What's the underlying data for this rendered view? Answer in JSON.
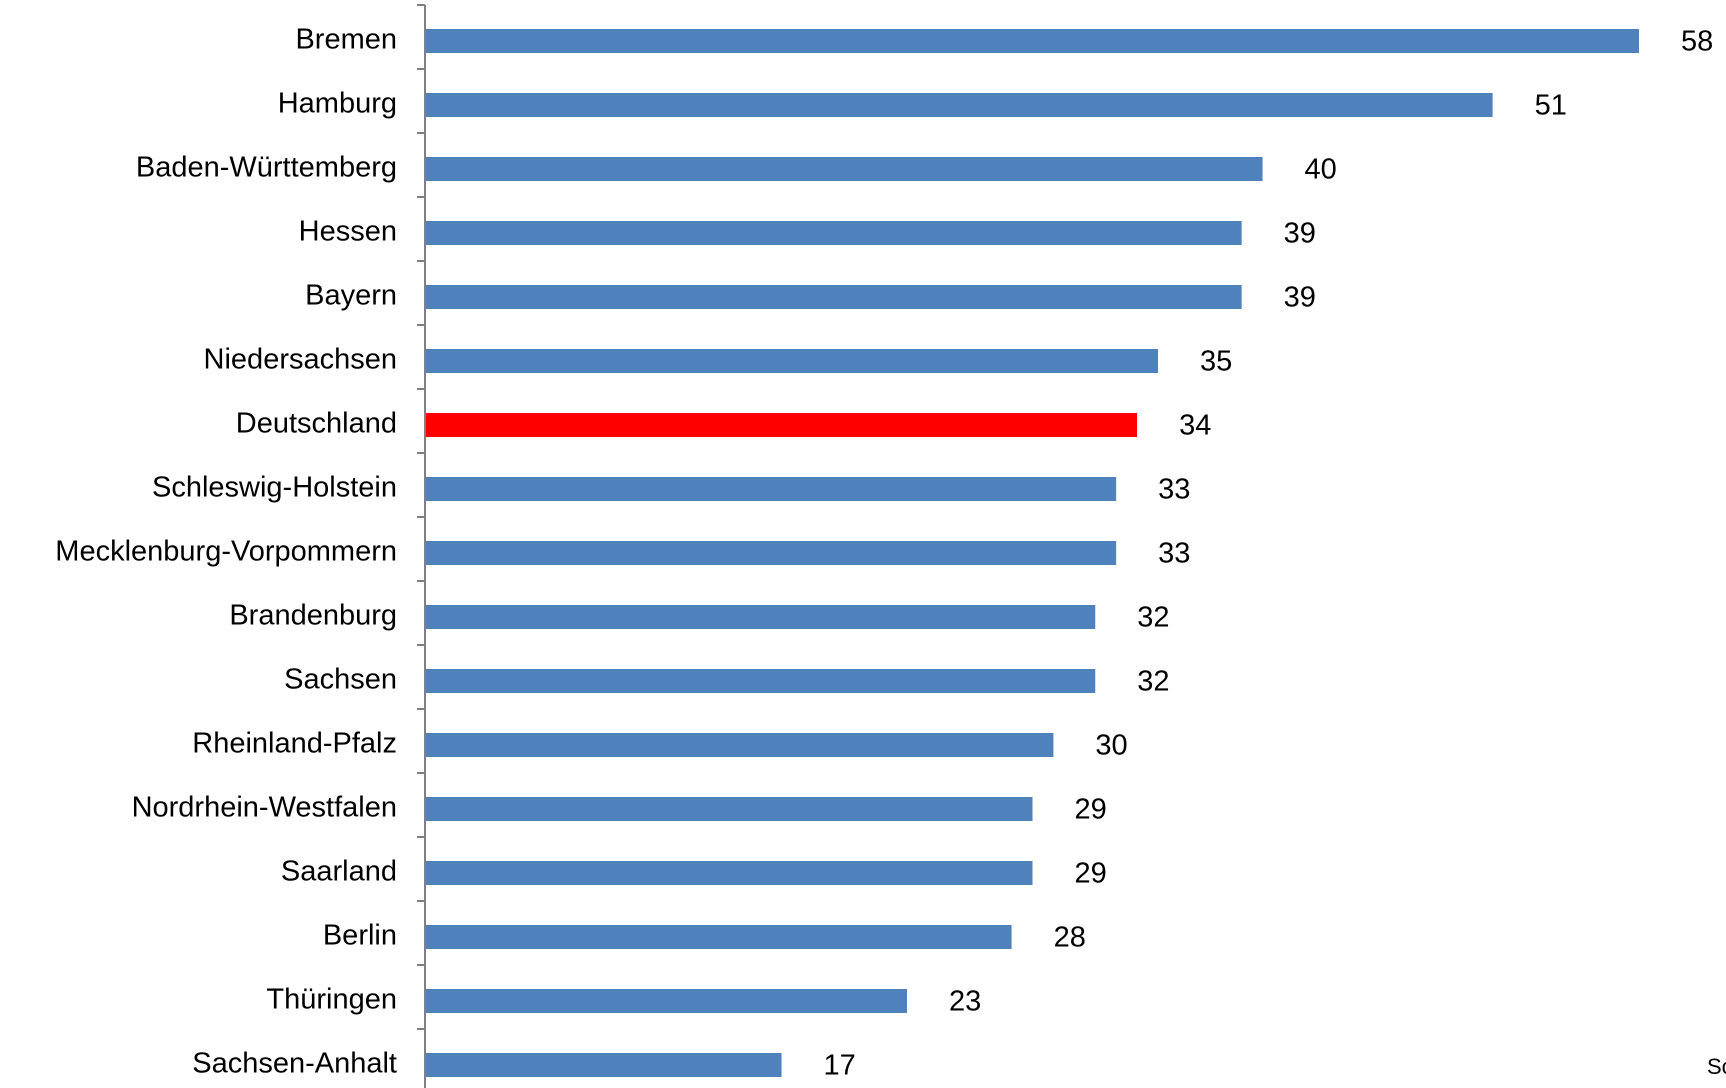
{
  "chart_data": {
    "type": "bar",
    "orientation": "horizontal",
    "categories": [
      "Bremen",
      "Hamburg",
      "Baden-Württemberg",
      "Hessen",
      "Bayern",
      "Niedersachsen",
      "Deutschland",
      "Schleswig-Holstein",
      "Mecklenburg-Vorpommern",
      "Brandenburg",
      "Sachsen",
      "Rheinland-Pfalz",
      "Nordrhein-Westfalen",
      "Saarland",
      "Berlin",
      "Thüringen",
      "Sachsen-Anhalt"
    ],
    "values": [
      58,
      51,
      40,
      39,
      39,
      35,
      34,
      33,
      33,
      32,
      32,
      30,
      29,
      29,
      28,
      23,
      17
    ],
    "value_labels": [
      "58",
      "51",
      "40",
      "39",
      "39",
      "35",
      "34",
      "33",
      "33",
      "32",
      "32",
      "30",
      "29",
      "29",
      "28",
      "23",
      "17"
    ],
    "bar_colors": [
      "#4f81bd",
      "#4f81bd",
      "#4f81bd",
      "#4f81bd",
      "#4f81bd",
      "#4f81bd",
      "#ff0000",
      "#4f81bd",
      "#4f81bd",
      "#4f81bd",
      "#4f81bd",
      "#4f81bd",
      "#4f81bd",
      "#4f81bd",
      "#4f81bd",
      "#4f81bd",
      "#4f81bd"
    ],
    "xlim": [
      0,
      58
    ],
    "grid": false,
    "legend": "none",
    "axis_color": "#808080",
    "footnote": "Sc"
  }
}
